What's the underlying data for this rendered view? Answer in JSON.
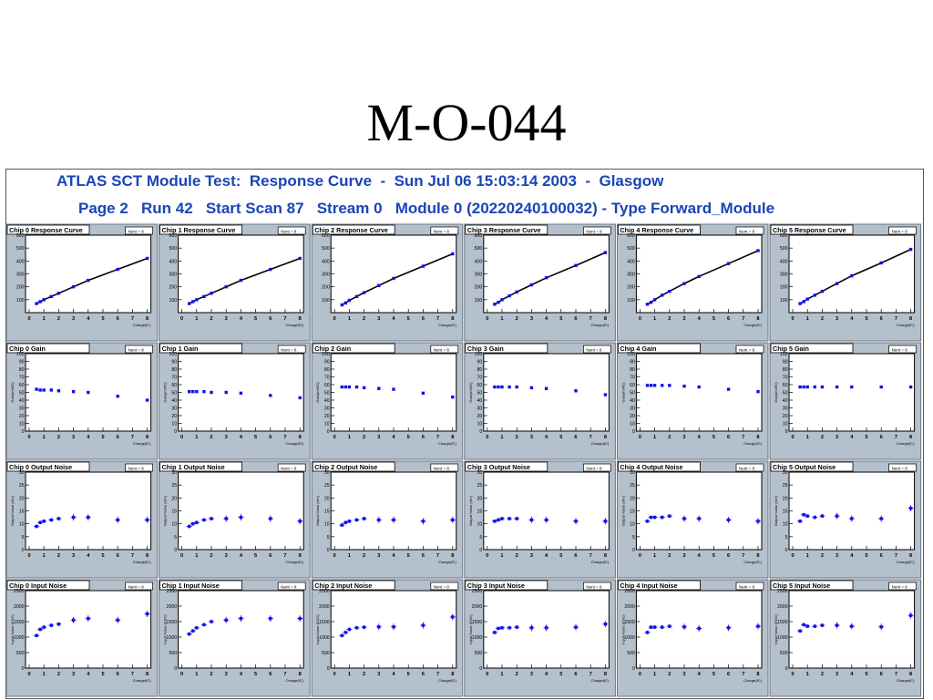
{
  "slide": {
    "title": "M-O-044"
  },
  "header": {
    "line1": "ATLAS SCT Module Test:  Response Curve  -  Sun Jul 06 15:03:14 2003  -  Glasgow",
    "line2": "Page 2   Run 42   Start Scan 87   Stream 0   Module 0 (20220240100032) - Type Forward_Module"
  },
  "colors": {
    "panel_bg": "#b4c0cc",
    "marker": "#1010ee",
    "line": "#000000",
    "header_text": "#1a45b8"
  },
  "chart_data": {
    "type": "scatter",
    "x_ticks": [
      "0",
      "1",
      "2",
      "3",
      "4",
      "5",
      "6",
      "7",
      "8"
    ],
    "xlabel": "Charge(fC)",
    "stat_box": "Nent = 8",
    "rows": [
      {
        "key": "response",
        "ylabel": "",
        "ylim": [
          0,
          600
        ],
        "y_ticks": [
          "100",
          "200",
          "300",
          "400",
          "500",
          "600"
        ],
        "line_fit": true,
        "error_bars": false,
        "charts": [
          {
            "title": "Chip 0 Response Curve",
            "x": [
              0.5,
              0.75,
              1,
              1.5,
              2,
              3,
              4,
              6,
              8
            ],
            "y": [
              70,
              85,
              100,
              125,
              150,
              200,
              250,
              335,
              420
            ]
          },
          {
            "title": "Chip 1 Response Curve",
            "x": [
              0.5,
              0.75,
              1,
              1.5,
              2,
              3,
              4,
              6,
              8
            ],
            "y": [
              70,
              85,
              100,
              125,
              150,
              200,
              250,
              335,
              420
            ]
          },
          {
            "title": "Chip 2 Response Curve",
            "x": [
              0.5,
              0.75,
              1,
              1.5,
              2,
              3,
              4,
              6,
              8
            ],
            "y": [
              60,
              75,
              95,
              125,
              155,
              210,
              265,
              360,
              455
            ]
          },
          {
            "title": "Chip 3 Response Curve",
            "x": [
              0.5,
              0.75,
              1,
              1.5,
              2,
              3,
              4,
              6,
              8
            ],
            "y": [
              65,
              80,
              100,
              130,
              160,
              215,
              270,
              365,
              465
            ]
          },
          {
            "title": "Chip 4 Response Curve",
            "x": [
              0.5,
              0.75,
              1,
              1.5,
              2,
              3,
              4,
              6,
              8
            ],
            "y": [
              65,
              80,
              100,
              135,
              165,
              225,
              280,
              380,
              480
            ]
          },
          {
            "title": "Chip 5 Response Curve",
            "x": [
              0.5,
              0.75,
              1,
              1.5,
              2,
              3,
              4,
              6,
              8
            ],
            "y": [
              70,
              85,
              105,
              135,
              165,
              225,
              285,
              385,
              490
            ]
          }
        ]
      },
      {
        "key": "gain",
        "ylabel": "Gain(mV/fC)",
        "ylim": [
          0,
          100
        ],
        "y_ticks": [
          "0",
          "10",
          "20",
          "30",
          "40",
          "50",
          "60",
          "70",
          "80",
          "90",
          "100"
        ],
        "line_fit": false,
        "error_bars": false,
        "charts": [
          {
            "title": "Chip 0 Gain",
            "x": [
              0.5,
              0.75,
              1,
              1.5,
              2,
              3,
              4,
              6,
              8
            ],
            "y": [
              54,
              53,
              53,
              53,
              52,
              51,
              50,
              45,
              40
            ]
          },
          {
            "title": "Chip 1 Gain",
            "x": [
              0.5,
              0.75,
              1,
              1.5,
              2,
              3,
              4,
              6,
              8
            ],
            "y": [
              51,
              51,
              51,
              51,
              50,
              50,
              49,
              46,
              43
            ]
          },
          {
            "title": "Chip 2 Gain",
            "x": [
              0.5,
              0.75,
              1,
              1.5,
              2,
              3,
              4,
              6,
              8
            ],
            "y": [
              57,
              57,
              57,
              57,
              56,
              55,
              54,
              49,
              44
            ]
          },
          {
            "title": "Chip 3 Gain",
            "x": [
              0.5,
              0.75,
              1,
              1.5,
              2,
              3,
              4,
              6,
              8
            ],
            "y": [
              57,
              57,
              57,
              57,
              57,
              56,
              55,
              52,
              47
            ]
          },
          {
            "title": "Chip 4 Gain",
            "x": [
              0.5,
              0.75,
              1,
              1.5,
              2,
              3,
              4,
              6,
              8
            ],
            "y": [
              59,
              59,
              59,
              59,
              59,
              58,
              57,
              54,
              51
            ]
          },
          {
            "title": "Chip 5 Gain",
            "x": [
              0.5,
              0.75,
              1,
              1.5,
              2,
              3,
              4,
              6,
              8
            ],
            "y": [
              57,
              57,
              57,
              57,
              57,
              57,
              57,
              57,
              57
            ]
          }
        ]
      },
      {
        "key": "output_noise",
        "ylabel": "Output Noise (mV)",
        "ylim": [
          0,
          30
        ],
        "y_ticks": [
          "0",
          "5",
          "10",
          "15",
          "20",
          "25",
          "30"
        ],
        "line_fit": false,
        "error_bars": true,
        "charts": [
          {
            "title": "Chip 0 Output Noise",
            "x": [
              0.5,
              0.75,
              1,
              1.5,
              2,
              3,
              4,
              6,
              8
            ],
            "y": [
              9,
              10.5,
              11,
              11.5,
              12,
              12.5,
              12.5,
              11.5,
              11.5
            ]
          },
          {
            "title": "Chip 1 Output Noise",
            "x": [
              0.5,
              0.75,
              1,
              1.5,
              2,
              3,
              4,
              6,
              8
            ],
            "y": [
              9,
              10,
              10.5,
              11.5,
              12,
              12,
              12.5,
              12,
              11
            ]
          },
          {
            "title": "Chip 2 Output Noise",
            "x": [
              0.5,
              0.75,
              1,
              1.5,
              2,
              3,
              4,
              6,
              8
            ],
            "y": [
              9.5,
              10.5,
              11,
              11.5,
              12,
              11.5,
              11.5,
              11,
              11.5
            ]
          },
          {
            "title": "Chip 3 Output Noise",
            "x": [
              0.5,
              0.75,
              1,
              1.5,
              2,
              3,
              4,
              6,
              8
            ],
            "y": [
              11,
              11.5,
              12,
              12,
              12,
              11.5,
              11.5,
              11,
              11
            ]
          },
          {
            "title": "Chip 4 Output Noise",
            "x": [
              0.5,
              0.75,
              1,
              1.5,
              2,
              3,
              4,
              6,
              8
            ],
            "y": [
              11,
              12.5,
              12.5,
              12.5,
              13,
              12,
              12,
              11.5,
              11
            ]
          },
          {
            "title": "Chip 5 Output Noise",
            "x": [
              0.5,
              0.75,
              1,
              1.5,
              2,
              3,
              4,
              6,
              8
            ],
            "y": [
              11,
              13.5,
              13,
              12.5,
              13,
              13,
              12,
              12,
              16
            ]
          }
        ]
      },
      {
        "key": "input_noise",
        "ylabel": "Input Noise (ENC)",
        "ylim": [
          0,
          2500
        ],
        "y_ticks": [
          "0",
          "500",
          "1000",
          "1500",
          "2000",
          "2500"
        ],
        "line_fit": false,
        "error_bars": true,
        "charts": [
          {
            "title": "Chip 0 Input Noise",
            "x": [
              0.5,
              0.75,
              1,
              1.5,
              2,
              3,
              4,
              6,
              8
            ],
            "y": [
              1050,
              1250,
              1320,
              1380,
              1420,
              1550,
              1600,
              1550,
              1750
            ]
          },
          {
            "title": "Chip 1 Input Noise",
            "x": [
              0.5,
              0.75,
              1,
              1.5,
              2,
              3,
              4,
              6,
              8
            ],
            "y": [
              1100,
              1200,
              1300,
              1400,
              1500,
              1550,
              1600,
              1600,
              1600
            ]
          },
          {
            "title": "Chip 2 Input Noise",
            "x": [
              0.5,
              0.75,
              1,
              1.5,
              2,
              3,
              4,
              6,
              8
            ],
            "y": [
              1050,
              1150,
              1250,
              1300,
              1320,
              1330,
              1330,
              1380,
              1650
            ]
          },
          {
            "title": "Chip 3 Input Noise",
            "x": [
              0.5,
              0.75,
              1,
              1.5,
              2,
              3,
              4,
              6,
              8
            ],
            "y": [
              1150,
              1280,
              1300,
              1300,
              1320,
              1300,
              1300,
              1320,
              1420
            ]
          },
          {
            "title": "Chip 4 Input Noise",
            "x": [
              0.5,
              0.75,
              1,
              1.5,
              2,
              3,
              4,
              6,
              8
            ],
            "y": [
              1150,
              1320,
              1320,
              1320,
              1350,
              1330,
              1280,
              1300,
              1350
            ]
          },
          {
            "title": "Chip 5 Input Noise",
            "x": [
              0.5,
              0.75,
              1,
              1.5,
              2,
              3,
              4,
              6,
              8
            ],
            "y": [
              1200,
              1400,
              1350,
              1350,
              1380,
              1380,
              1350,
              1330,
              1700
            ]
          }
        ]
      }
    ]
  }
}
